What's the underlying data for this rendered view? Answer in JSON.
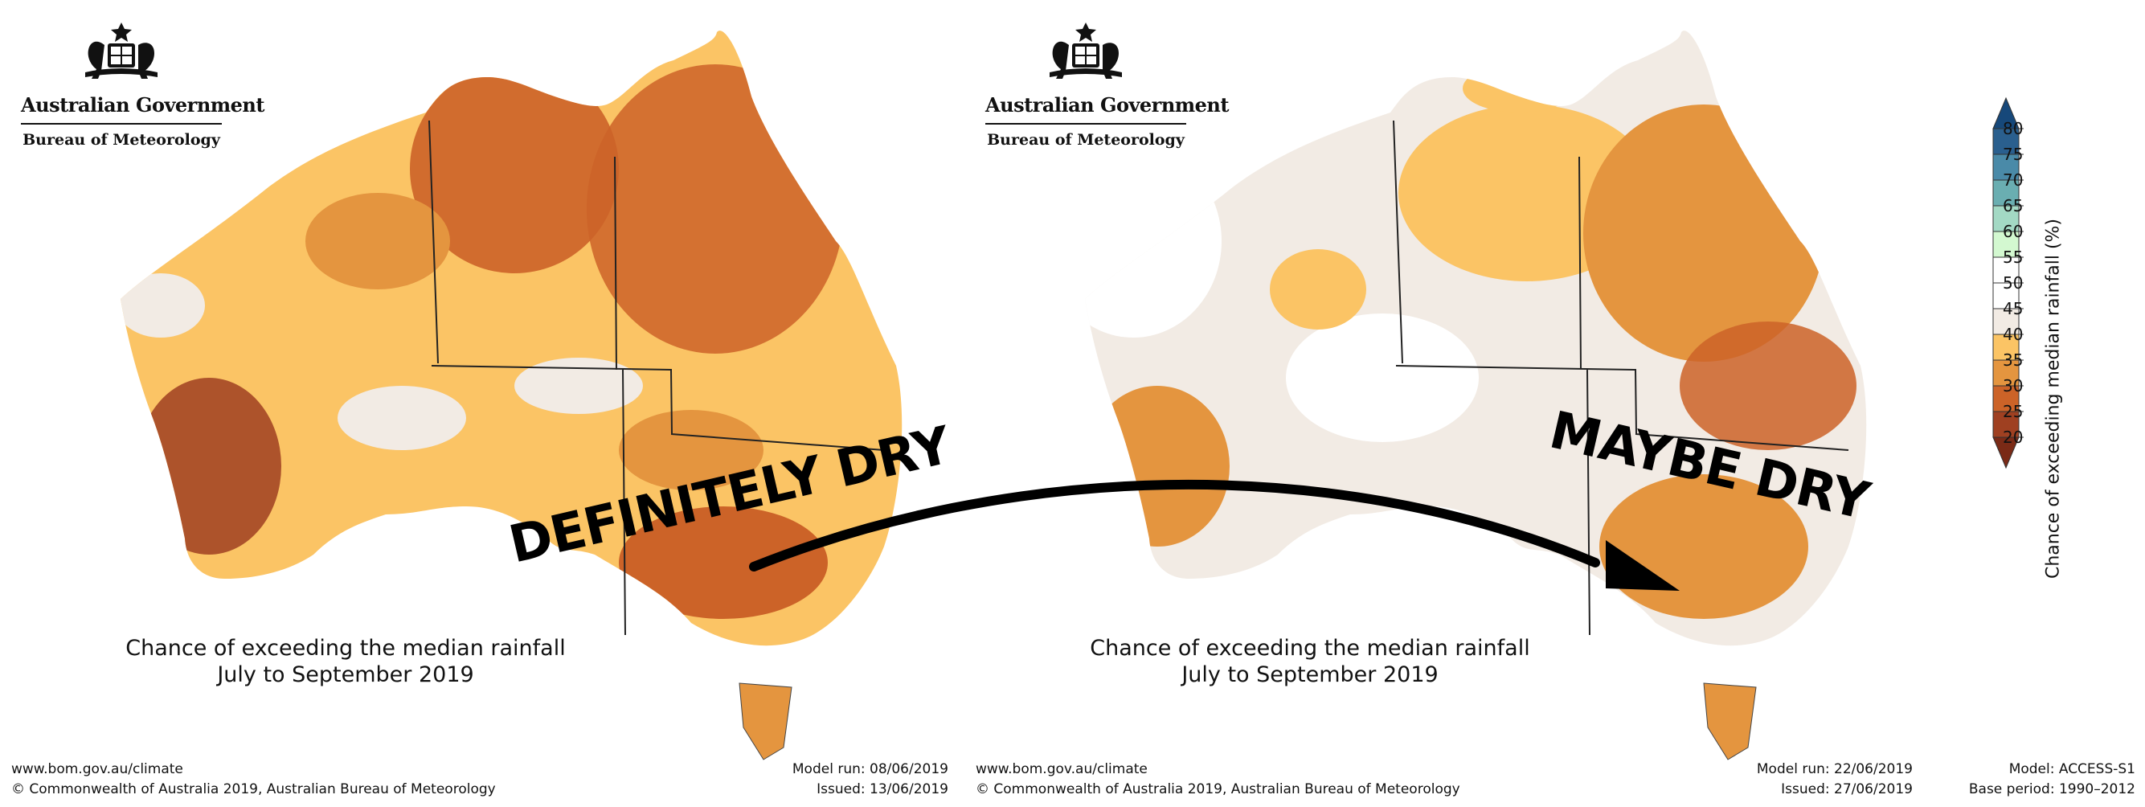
{
  "branding": {
    "government": "Australian Government",
    "bureau": "Bureau of Meteorology"
  },
  "panels": [
    {
      "caption_line1": "Chance of exceeding the median rainfall",
      "caption_line2": "July to September 2019",
      "website": "www.bom.gov.au/climate",
      "copyright": "© Commonwealth of Australia 2019, Australian Bureau of Meteorology",
      "model_run": "Model run: 08/06/2019",
      "issued": "Issued: 13/06/2019"
    },
    {
      "caption_line1": "Chance of exceeding the median rainfall",
      "caption_line2": "July to September 2019",
      "website": "www.bom.gov.au/climate",
      "copyright": "© Commonwealth of Australia 2019, Australian Bureau of Meteorology",
      "model_run": "Model run: 22/06/2019",
      "issued": "Issued: 27/06/2019"
    }
  ],
  "annotations": {
    "left": "DEFINITELY DRY",
    "right": "MAYBE DRY"
  },
  "legend": {
    "title": "Chance of exceeding median rainfall (%)",
    "ticks": [
      "80",
      "75",
      "70",
      "65",
      "60",
      "55",
      "50",
      "45",
      "40",
      "35",
      "30",
      "25",
      "20"
    ],
    "bands": [
      {
        "range": "75-80",
        "color": "#2a5f8e"
      },
      {
        "range": "70-75",
        "color": "#4a8aa8"
      },
      {
        "range": "65-70",
        "color": "#6aaeb1"
      },
      {
        "range": "60-65",
        "color": "#a3d9c4"
      },
      {
        "range": "55-60",
        "color": "#d3f8d0"
      },
      {
        "range": "50-55",
        "color": "#ffffff"
      },
      {
        "range": "45-50",
        "color": "#ffffff"
      },
      {
        "range": "40-45",
        "color": "#f2ebe4"
      },
      {
        "range": "35-40",
        "color": "#fbc465"
      },
      {
        "range": "30-35",
        "color": "#e4953f"
      },
      {
        "range": "25-30",
        "color": "#cc6328"
      },
      {
        "range": "20-25",
        "color": "#9f4021"
      }
    ],
    "model": "Model: ACCESS-S1",
    "base_period": "Base period: 1990–2012"
  }
}
